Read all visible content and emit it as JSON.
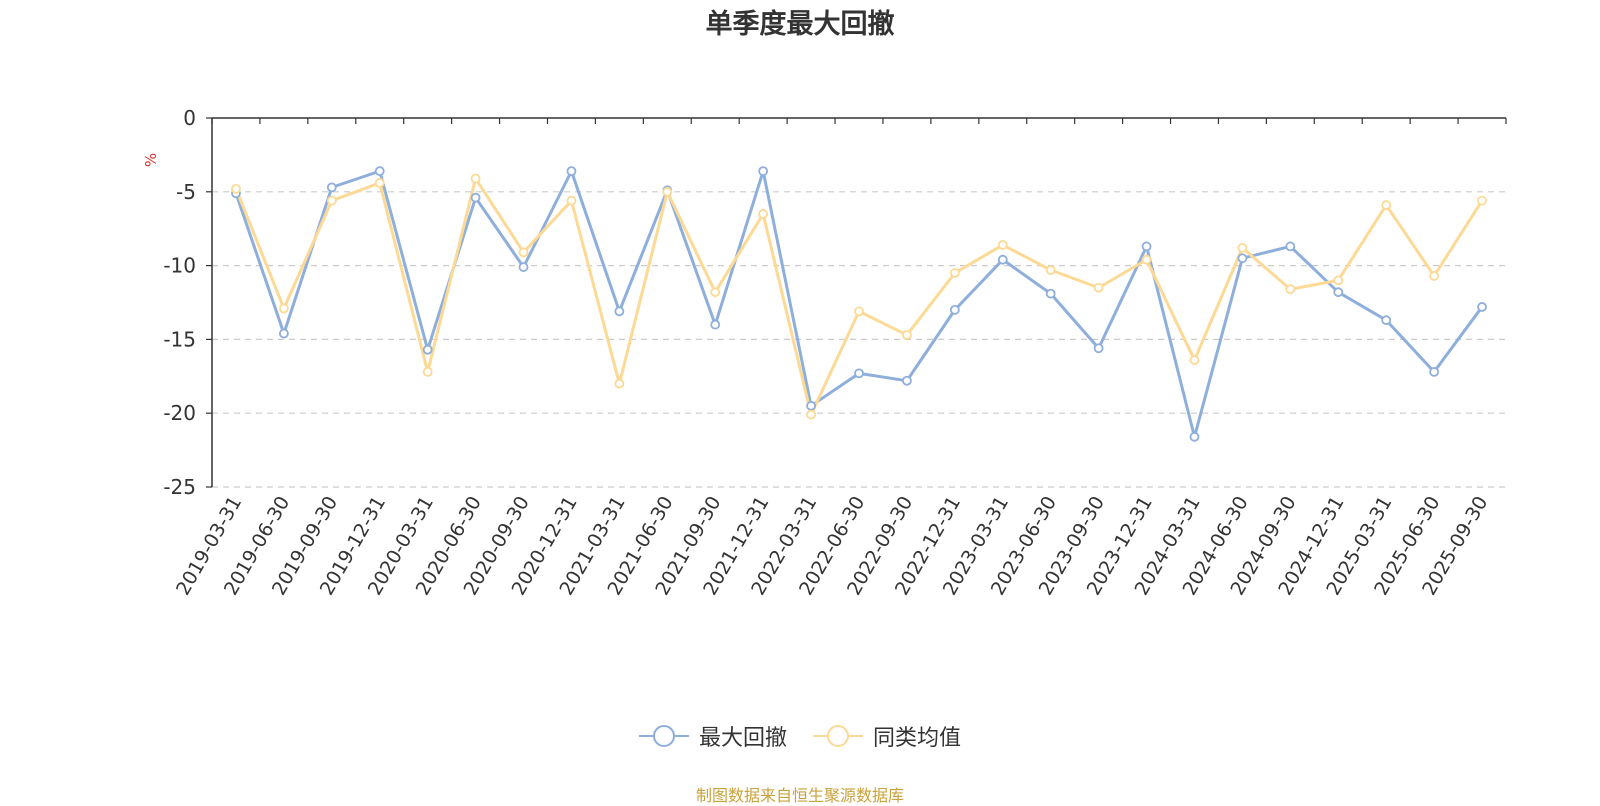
{
  "chart_data": {
    "type": "line",
    "title": "单季度最大回撤",
    "ylabel": "%",
    "xlabel": "",
    "ylim": [
      -25,
      0
    ],
    "yticks": [
      0,
      -5,
      -10,
      -15,
      -20,
      -25
    ],
    "grid": true,
    "legend_position": "bottom-center",
    "categories": [
      "2019-03-31",
      "2019-06-30",
      "2019-09-30",
      "2019-12-31",
      "2020-03-31",
      "2020-06-30",
      "2020-09-30",
      "2020-12-31",
      "2021-03-31",
      "2021-06-30",
      "2021-09-30",
      "2021-12-31",
      "2022-03-31",
      "2022-06-30",
      "2022-09-30",
      "2022-12-31",
      "2023-03-31",
      "2023-06-30",
      "2023-09-30",
      "2023-12-31",
      "2024-03-31",
      "2024-06-30",
      "2024-09-30",
      "2024-12-31",
      "2025-03-31",
      "2025-06-30",
      "2025-09-30"
    ],
    "series": [
      {
        "name": "最大回撤",
        "color": "#8eaedb",
        "values": [
          -5.1,
          -14.6,
          -4.7,
          -3.6,
          -15.7,
          -5.4,
          -10.1,
          -3.6,
          -13.1,
          -4.9,
          -14.0,
          -3.6,
          -19.5,
          -17.3,
          -17.8,
          -13.0,
          -9.6,
          -11.9,
          -15.6,
          -8.7,
          -21.6,
          -9.5,
          -8.7,
          -11.8,
          -13.7,
          -17.2,
          -12.8
        ]
      },
      {
        "name": "同类均值",
        "color": "#fcd995",
        "values": [
          -4.8,
          -12.9,
          -5.6,
          -4.4,
          -17.2,
          -4.1,
          -9.1,
          -5.6,
          -18.0,
          -5.0,
          -11.8,
          -6.5,
          -20.1,
          -13.1,
          -14.7,
          -10.5,
          -8.6,
          -10.3,
          -11.5,
          -9.6,
          -16.4,
          -8.8,
          -11.6,
          -11.0,
          -5.9,
          -10.7,
          -5.6
        ]
      }
    ]
  },
  "footer": {
    "source": "制图数据来自恒生聚源数据库"
  }
}
